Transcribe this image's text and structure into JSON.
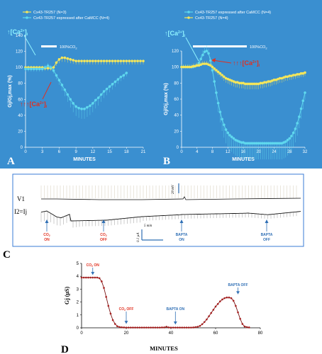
{
  "colors": {
    "panel_bg": "#3a8fd0",
    "series_yellow": "#f5e65a",
    "series_cyan": "#5fd8ee",
    "red_annotation": "#e03020",
    "cyan_annotation": "#8ff3ff",
    "trace_black": "#111111",
    "trace_grid": "#c9bfa6",
    "panel_c_border": "#3a7bd5",
    "panel_d_point": "#a82222",
    "panel_d_line": "#7a1414"
  },
  "panels": {
    "A": {
      "letter": "A",
      "pco2": "100%CO",
      "sub2": "2"
    },
    "B": {
      "letter": "B",
      "pco2": "100%CO",
      "sub2": "2"
    },
    "C": {
      "letter": "C"
    },
    "D": {
      "letter": "D"
    }
  },
  "chart_data": [
    {
      "id": "A",
      "type": "line",
      "xlabel": "MINUTES",
      "ylabel": "Gj/Gj,max (%)",
      "xlim": [
        0,
        21
      ],
      "ylim": [
        0,
        140
      ],
      "xticks": [
        0,
        3,
        6,
        9,
        12,
        15,
        18,
        21
      ],
      "yticks": [
        0,
        20,
        40,
        60,
        80,
        100,
        120,
        140
      ],
      "legend_position": "top",
      "annotations": {
        "top": "↑[Ca",
        "top_sup": "2+",
        "top_end": "]",
        "top_sub": "i",
        "bottom": "↑↑↑[Ca",
        "bottom_sup": "2+",
        "bottom_end": "]",
        "bottom_sub": "i"
      },
      "stimulus_bar": {
        "start": 4,
        "end": 8
      },
      "series": [
        {
          "name": "Cx43-TR257 (N=3)",
          "color": "#f5e65a",
          "x": [
            0,
            0.5,
            1,
            1.5,
            2,
            2.5,
            3,
            3.5,
            4,
            4.5,
            5,
            5.5,
            6,
            6.5,
            7,
            7.5,
            8,
            8.5,
            9,
            9.5,
            10,
            10.5,
            11,
            11.5,
            12,
            12.5,
            13,
            13.5,
            14,
            14.5,
            15,
            15.5,
            16,
            16.5,
            17,
            17.5,
            18,
            18.5,
            19,
            19.5,
            20,
            20.5,
            21
          ],
          "y": [
            100,
            100,
            100,
            100,
            100,
            100,
            100,
            99,
            99,
            99,
            100,
            106,
            110,
            112,
            112,
            111,
            110,
            109,
            108,
            108,
            108,
            108,
            108,
            108,
            108,
            108,
            108,
            108,
            108,
            108,
            108,
            108,
            108,
            108,
            108,
            108,
            108,
            108,
            108,
            108,
            108,
            108,
            108
          ]
        },
        {
          "name": "Cx43-TR257 expressed after CaMCC (N=4)",
          "color": "#5fd8ee",
          "x": [
            0,
            0.5,
            1,
            1.5,
            2,
            2.5,
            3,
            3.5,
            4,
            4.5,
            5,
            5.5,
            6,
            6.5,
            7,
            7.5,
            8,
            8.5,
            9,
            9.5,
            10,
            10.5,
            11,
            11.5,
            12,
            12.5,
            13,
            13.5,
            14,
            14.5,
            15,
            15.5,
            16,
            16.5,
            17,
            17.5,
            18
          ],
          "y": [
            98,
            98,
            98,
            98,
            98,
            98,
            98,
            100,
            102,
            100,
            96,
            90,
            84,
            78,
            72,
            66,
            60,
            55,
            51,
            49,
            48,
            48,
            50,
            52,
            55,
            59,
            62,
            66,
            70,
            73,
            76,
            79,
            82,
            85,
            88,
            90,
            93
          ]
        }
      ]
    },
    {
      "id": "B",
      "type": "line",
      "xlabel": "MINUTES",
      "ylabel": "Gj/Gj,max (%)",
      "xlim": [
        0,
        32
      ],
      "ylim": [
        0,
        120
      ],
      "xticks": [
        0,
        4,
        8,
        12,
        16,
        20,
        24,
        28,
        32
      ],
      "yticks": [
        0,
        20,
        40,
        60,
        80,
        100,
        120
      ],
      "legend_position": "top",
      "annotations": {
        "top": "↑[Ca",
        "top_sup": "2+",
        "top_end": "]",
        "top_sub": "i",
        "right": "↑↑↑[Ca",
        "right_sup": "2+",
        "right_end": "]",
        "right_sub": "i"
      },
      "stimulus_bar": {
        "start": 5,
        "end": 18
      },
      "series": [
        {
          "name": "Cx43-TR257 expressed after CaMCC (N=4)",
          "color": "#5fd8ee",
          "x": [
            0,
            0.5,
            1,
            1.5,
            2,
            2.5,
            3,
            3.5,
            4,
            4.5,
            5,
            5.5,
            6,
            6.5,
            7,
            7.5,
            8,
            8.5,
            9,
            9.5,
            10,
            10.5,
            11,
            11.5,
            12,
            12.5,
            13,
            13.5,
            14,
            14.5,
            15,
            15.5,
            16,
            16.5,
            17,
            17.5,
            18,
            18.5,
            19,
            19.5,
            20,
            20.5,
            21,
            21.5,
            22,
            22.5,
            23,
            23.5,
            24,
            24.5,
            25,
            25.5,
            26,
            26.5,
            27,
            27.5,
            28,
            28.5,
            29,
            29.5,
            30,
            30.5,
            31,
            31.5,
            32
          ],
          "y": [
            100,
            100,
            100,
            100,
            100,
            100,
            100,
            101,
            102,
            105,
            110,
            115,
            119,
            120,
            117,
            108,
            96,
            82,
            68,
            55,
            44,
            35,
            28,
            22,
            18,
            15,
            13,
            11,
            9,
            8,
            7,
            6,
            6,
            5,
            5,
            5,
            5,
            5,
            5,
            5,
            5,
            5,
            5,
            5,
            5,
            5,
            5,
            5,
            5,
            5,
            5,
            5,
            5,
            6,
            7,
            9,
            11,
            14,
            18,
            23,
            30,
            38,
            48,
            58,
            68
          ]
        },
        {
          "name": "Cx43-TR257 (N=4)",
          "color": "#f5e65a",
          "x": [
            0,
            0.5,
            1,
            1.5,
            2,
            2.5,
            3,
            3.5,
            4,
            4.5,
            5,
            5.5,
            6,
            6.5,
            7,
            7.5,
            8,
            8.5,
            9,
            9.5,
            10,
            10.5,
            11,
            11.5,
            12,
            12.5,
            13,
            13.5,
            14,
            14.5,
            15,
            15.5,
            16,
            16.5,
            17,
            17.5,
            18,
            18.5,
            19,
            19.5,
            20,
            20.5,
            21,
            21.5,
            22,
            22.5,
            23,
            23.5,
            24,
            24.5,
            25,
            25.5,
            26,
            26.5,
            27,
            27.5,
            28,
            28.5,
            29,
            29.5,
            30,
            30.5,
            31,
            31.5,
            32
          ],
          "y": [
            100,
            100,
            100,
            100,
            100,
            100,
            101,
            101,
            102,
            102,
            103,
            104,
            104,
            104,
            103,
            102,
            100,
            98,
            96,
            94,
            92,
            90,
            88,
            86,
            85,
            84,
            83,
            82,
            81,
            81,
            80,
            80,
            80,
            79,
            79,
            79,
            79,
            79,
            79,
            79,
            79,
            80,
            80,
            81,
            81,
            82,
            82,
            83,
            84,
            84,
            85,
            86,
            86,
            87,
            88,
            88,
            89,
            89,
            90,
            90,
            91,
            91,
            92,
            92,
            93
          ]
        }
      ]
    },
    {
      "id": "C",
      "type": "line",
      "trace_labels": {
        "v1": "V1",
        "ij": "I2=Ij"
      },
      "scale_bars": {
        "voltage": "20 mV",
        "current": "0.1 µA",
        "time": "5 min"
      },
      "events": [
        {
          "label1": "CO",
          "label1_sub": "2",
          "label2": "ON",
          "color": "#e03020"
        },
        {
          "label1": "CO",
          "label1_sub": "2",
          "label2": "OFF",
          "color": "#e03020"
        },
        {
          "label1": "BAPTA",
          "label1_sub": "",
          "label2": "ON",
          "color": "#2f6fb5"
        },
        {
          "label1": "BAPTA",
          "label1_sub": "",
          "label2": "OFF",
          "color": "#2f6fb5"
        }
      ]
    },
    {
      "id": "D",
      "type": "scatter",
      "xlabel": "MINUTES",
      "ylabel": "Gj (µS)",
      "xlim": [
        0,
        80
      ],
      "ylim": [
        0,
        5
      ],
      "xticks": [
        0,
        20,
        40,
        60,
        80
      ],
      "yticks": [
        0,
        1,
        2,
        3,
        4,
        5
      ],
      "events": [
        {
          "text": "CO",
          "sub": "2",
          "tail": " ON",
          "color": "#e03020"
        },
        {
          "text": "CO",
          "sub": "2",
          "tail": " OFF",
          "color": "#e03020"
        },
        {
          "text": "BAPTA ON",
          "sub": "",
          "tail": "",
          "color": "#2f6fb5"
        },
        {
          "text": "BAPTA OFF",
          "sub": "",
          "tail": "",
          "color": "#2f6fb5"
        }
      ],
      "x": [
        0,
        1,
        2,
        3,
        4,
        5,
        6,
        7,
        8,
        9,
        10,
        11,
        12,
        13,
        14,
        15,
        16,
        17,
        18,
        19,
        20,
        21,
        22,
        23,
        24,
        25,
        26,
        27,
        28,
        29,
        30,
        31,
        32,
        33,
        34,
        35,
        36,
        37,
        38,
        39,
        40,
        41,
        42,
        43,
        44,
        45,
        46,
        47,
        48,
        49,
        50,
        51,
        52,
        53,
        54,
        55,
        56,
        57,
        58,
        59,
        60,
        61,
        62,
        63,
        64,
        65,
        66,
        67,
        68,
        69,
        70,
        71,
        72,
        73,
        74,
        75
      ],
      "y": [
        3.9,
        3.9,
        3.9,
        3.9,
        3.9,
        3.9,
        3.9,
        3.9,
        3.85,
        3.6,
        3.1,
        2.4,
        1.7,
        1.1,
        0.6,
        0.3,
        0.12,
        0.06,
        0.04,
        0.03,
        0.02,
        0.02,
        0.02,
        0.02,
        0.02,
        0.02,
        0.02,
        0.02,
        0.02,
        0.02,
        0.02,
        0.02,
        0.02,
        0.02,
        0.02,
        0.02,
        0.03,
        0.03,
        0.08,
        0.03,
        0.02,
        0.02,
        0.02,
        0.02,
        0.02,
        0.02,
        0.02,
        0.02,
        0.02,
        0.02,
        0.03,
        0.05,
        0.08,
        0.15,
        0.28,
        0.45,
        0.65,
        0.9,
        1.15,
        1.4,
        1.65,
        1.85,
        2.05,
        2.2,
        2.3,
        2.35,
        2.35,
        2.3,
        2.1,
        1.7,
        1.2,
        0.7,
        0.3,
        0.1,
        0.05,
        0.03
      ]
    }
  ]
}
